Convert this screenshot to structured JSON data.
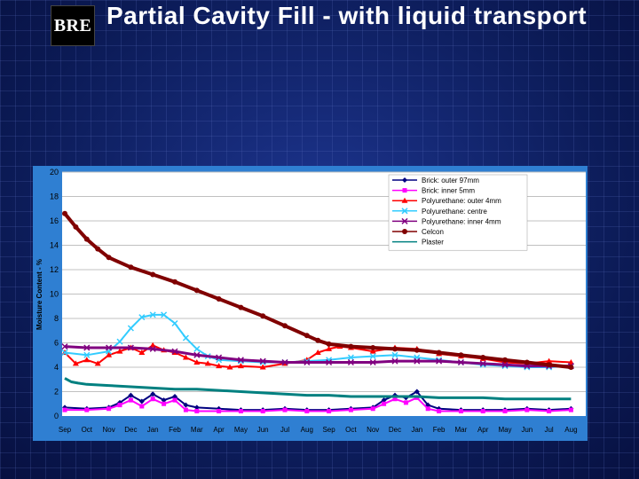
{
  "slide": {
    "logo_text": "BRE",
    "title": "Partial Cavity Fill - with liquid transport"
  },
  "colors": {
    "background": "#0d1d5c",
    "chart_frame": "#2f7fd2",
    "plot_area": "#ffffff"
  },
  "chart_data": {
    "type": "line",
    "title": "",
    "xlabel": "",
    "ylabel": "Moisture Content - %",
    "ylim": [
      0,
      20
    ],
    "yticks": [
      0,
      2,
      4,
      6,
      8,
      10,
      12,
      14,
      16,
      18,
      20
    ],
    "x_categories": [
      "Sep",
      "Oct",
      "Nov",
      "Dec",
      "Jan",
      "Feb",
      "Mar",
      "Apr",
      "May",
      "Jun",
      "Jul",
      "Aug",
      "Sep",
      "Oct",
      "Nov",
      "Dec",
      "Jan",
      "Feb",
      "Mar",
      "Apr",
      "May",
      "Jun",
      "Jul",
      "Aug"
    ],
    "grid": "horizontal",
    "legend_position": "top-right",
    "series": [
      {
        "name": "Brick: outer 97mm",
        "color": "#000080",
        "marker": "diamond",
        "x": [
          0,
          1,
          2,
          2.5,
          3,
          3.5,
          4,
          4.5,
          5,
          5.5,
          6,
          7,
          8,
          9,
          10,
          11,
          12,
          13,
          14,
          14.5,
          15,
          15.5,
          16,
          16.5,
          17,
          18,
          19,
          20,
          21,
          22,
          23
        ],
        "y": [
          0.7,
          0.6,
          0.7,
          1.1,
          1.7,
          1.2,
          1.8,
          1.3,
          1.6,
          0.9,
          0.7,
          0.6,
          0.5,
          0.5,
          0.6,
          0.5,
          0.5,
          0.6,
          0.7,
          1.3,
          1.7,
          1.5,
          2.0,
          0.9,
          0.6,
          0.5,
          0.5,
          0.5,
          0.6,
          0.5,
          0.6
        ]
      },
      {
        "name": "Brick: inner 5mm",
        "color": "#ff00ff",
        "marker": "square",
        "x": [
          0,
          1,
          2,
          2.5,
          3,
          3.5,
          4,
          4.5,
          5,
          5.5,
          6,
          7,
          8,
          9,
          10,
          11,
          12,
          13,
          14,
          14.5,
          15,
          15.5,
          16,
          16.5,
          17,
          18,
          19,
          20,
          21,
          22,
          23
        ],
        "y": [
          0.5,
          0.5,
          0.6,
          0.9,
          1.3,
          0.8,
          1.4,
          1.0,
          1.3,
          0.5,
          0.4,
          0.4,
          0.4,
          0.4,
          0.5,
          0.4,
          0.4,
          0.5,
          0.6,
          1.0,
          1.4,
          1.1,
          1.5,
          0.6,
          0.4,
          0.4,
          0.4,
          0.4,
          0.5,
          0.4,
          0.5
        ]
      },
      {
        "name": "Polyurethane: outer 4mm",
        "color": "#ff0000",
        "marker": "triangle",
        "x": [
          0,
          0.5,
          1,
          1.5,
          2,
          2.5,
          3,
          3.5,
          4,
          4.5,
          5,
          5.5,
          6,
          6.5,
          7,
          7.5,
          8,
          9,
          10,
          11,
          11.5,
          12,
          12.5,
          13,
          14,
          15,
          16,
          17,
          18,
          19,
          20,
          21,
          22,
          23
        ],
        "y": [
          5.2,
          4.3,
          4.6,
          4.3,
          5.0,
          5.3,
          5.6,
          5.2,
          5.8,
          5.4,
          5.2,
          4.8,
          4.4,
          4.3,
          4.1,
          4.0,
          4.1,
          4.0,
          4.3,
          4.6,
          5.2,
          5.5,
          5.7,
          5.6,
          5.3,
          5.6,
          5.5,
          5.1,
          4.9,
          4.7,
          4.4,
          4.3,
          4.5,
          4.4
        ]
      },
      {
        "name": "Polyurethane: centre",
        "color": "#33ccff",
        "marker": "x",
        "x": [
          0,
          1,
          2,
          2.5,
          3,
          3.5,
          4,
          4.5,
          5,
          5.5,
          6,
          6.5,
          7,
          8,
          9,
          10,
          11,
          12,
          13,
          14,
          15,
          16,
          17,
          18,
          19,
          20,
          21,
          22,
          23
        ],
        "y": [
          5.2,
          5.0,
          5.3,
          6.1,
          7.2,
          8.1,
          8.3,
          8.3,
          7.6,
          6.4,
          5.5,
          4.9,
          4.6,
          4.5,
          4.4,
          4.4,
          4.5,
          4.6,
          4.8,
          4.9,
          5.0,
          4.8,
          4.6,
          4.4,
          4.2,
          4.1,
          4.0,
          4.0,
          4.1
        ]
      },
      {
        "name": "Polyurethane: inner 4mm",
        "color": "#800080",
        "marker": "x",
        "x": [
          0,
          1,
          2,
          3,
          4,
          5,
          6,
          7,
          8,
          9,
          10,
          11,
          12,
          13,
          14,
          15,
          16,
          17,
          18,
          19,
          20,
          21,
          22,
          23
        ],
        "y": [
          5.7,
          5.6,
          5.6,
          5.6,
          5.5,
          5.3,
          5.0,
          4.8,
          4.6,
          4.5,
          4.4,
          4.4,
          4.4,
          4.4,
          4.4,
          4.5,
          4.5,
          4.5,
          4.4,
          4.3,
          4.2,
          4.1,
          4.1,
          4.1
        ]
      },
      {
        "name": "Celcon",
        "color": "#800000",
        "marker": "circle",
        "x": [
          0,
          0.5,
          1,
          1.5,
          2,
          3,
          4,
          5,
          6,
          7,
          8,
          9,
          10,
          11,
          11.5,
          12,
          13,
          14,
          15,
          16,
          17,
          18,
          19,
          20,
          21,
          22,
          23
        ],
        "y": [
          16.6,
          15.5,
          14.5,
          13.7,
          13.0,
          12.2,
          11.6,
          11.0,
          10.3,
          9.6,
          8.9,
          8.2,
          7.4,
          6.6,
          6.2,
          5.9,
          5.7,
          5.6,
          5.5,
          5.4,
          5.2,
          5.0,
          4.8,
          4.6,
          4.4,
          4.2,
          4.0
        ]
      },
      {
        "name": "Plaster",
        "color": "#008080",
        "marker": "none",
        "x": [
          0,
          0.3,
          0.6,
          1,
          2,
          3,
          4,
          5,
          6,
          7,
          8,
          9,
          10,
          11,
          12,
          13,
          14,
          15,
          16,
          17,
          18,
          19,
          20,
          21,
          22,
          23
        ],
        "y": [
          3.1,
          2.8,
          2.7,
          2.6,
          2.5,
          2.4,
          2.3,
          2.2,
          2.2,
          2.1,
          2.0,
          1.9,
          1.8,
          1.7,
          1.7,
          1.6,
          1.6,
          1.6,
          1.6,
          1.5,
          1.5,
          1.5,
          1.4,
          1.4,
          1.4,
          1.4
        ]
      }
    ]
  }
}
